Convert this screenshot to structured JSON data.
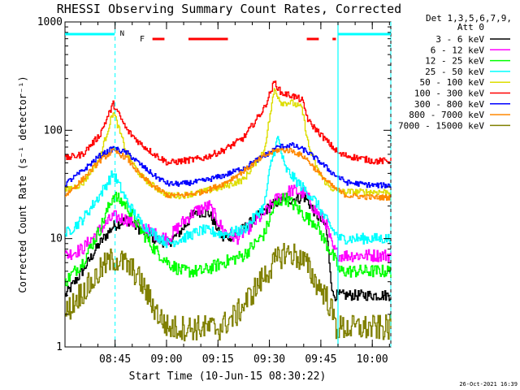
{
  "chart_data": {
    "type": "line",
    "title": "RHESSI Observing Summary Count Rates, Corrected",
    "xlabel": "Start Time (10-Jun-15 08:30:22)",
    "ylabel": "Corrected Count Rate (s⁻¹ detector⁻¹)",
    "yscale": "log",
    "ylim": [
      1,
      1000
    ],
    "xlim_minutes": [
      0,
      95
    ],
    "x_ticks": [
      {
        "label": "08:45",
        "t": 14.6
      },
      {
        "label": "09:00",
        "t": 29.6
      },
      {
        "label": "09:15",
        "t": 44.6
      },
      {
        "label": "09:30",
        "t": 59.6
      },
      {
        "label": "09:45",
        "t": 74.6
      },
      {
        "label": "10:00",
        "t": 89.6
      }
    ],
    "y_tick_labels": [
      "1",
      "10",
      "100",
      "1000"
    ],
    "legend": {
      "position": "right",
      "header_line1": "Det 1,3,5,6,7,9,",
      "header_line2": "Att 0"
    },
    "series": [
      {
        "name": "3 - 6 keV",
        "color": "#000000",
        "t": [
          0,
          5,
          10,
          14,
          18,
          22,
          26,
          30,
          34,
          38,
          42,
          46,
          50,
          54,
          58,
          62,
          66,
          70,
          73,
          76,
          78,
          80,
          90,
          95
        ],
        "v": [
          3,
          5,
          9,
          13,
          15,
          12,
          10,
          9,
          12,
          18,
          17,
          10,
          11,
          14,
          18,
          22,
          23,
          24,
          17,
          13,
          3,
          3,
          3,
          3
        ]
      },
      {
        "name": "6 - 12 keV",
        "color": "#ff00ff",
        "t": [
          0,
          5,
          10,
          14,
          18,
          22,
          26,
          30,
          34,
          38,
          42,
          46,
          50,
          54,
          58,
          62,
          66,
          70,
          73,
          76,
          78,
          80,
          90,
          95
        ],
        "v": [
          7,
          8,
          12,
          16,
          15,
          13,
          11,
          10,
          14,
          18,
          20,
          12,
          10,
          13,
          17,
          24,
          28,
          26,
          18,
          14,
          8,
          7,
          7,
          7
        ]
      },
      {
        "name": "12 - 25 keV",
        "color": "#00ff00",
        "t": [
          0,
          5,
          10,
          14,
          18,
          22,
          26,
          30,
          34,
          40,
          46,
          52,
          58,
          61,
          64,
          67,
          70,
          73,
          76,
          78,
          80,
          90,
          95
        ],
        "v": [
          4,
          6,
          12,
          25,
          20,
          12,
          8,
          6,
          5,
          5,
          6,
          7,
          11,
          20,
          24,
          20,
          16,
          14,
          9,
          7,
          5,
          5,
          5
        ]
      },
      {
        "name": "25 - 50 keV",
        "color": "#00ffff",
        "t": [
          0,
          5,
          10,
          14,
          18,
          22,
          26,
          30,
          34,
          40,
          46,
          52,
          58,
          60,
          62,
          64,
          67,
          70,
          73,
          76,
          78,
          80,
          90,
          95
        ],
        "v": [
          11,
          15,
          25,
          40,
          22,
          14,
          11,
          9,
          10,
          12,
          11,
          12,
          20,
          50,
          85,
          45,
          35,
          28,
          22,
          15,
          12,
          10,
          10,
          10
        ]
      },
      {
        "name": "50 - 100 keV",
        "color": "#dddd00",
        "t": [
          0,
          5,
          10,
          14,
          18,
          22,
          26,
          30,
          34,
          40,
          46,
          52,
          58,
          61,
          63,
          66,
          69,
          71,
          74,
          77,
          80,
          90,
          95
        ],
        "v": [
          28,
          32,
          55,
          150,
          60,
          38,
          30,
          25,
          25,
          27,
          30,
          35,
          65,
          240,
          180,
          180,
          160,
          70,
          40,
          30,
          27,
          27,
          27
        ]
      },
      {
        "name": "100 - 300 keV",
        "color": "#ff0000",
        "t": [
          0,
          5,
          10,
          14,
          18,
          22,
          26,
          30,
          34,
          40,
          46,
          52,
          58,
          61,
          63,
          66,
          69,
          71,
          74,
          77,
          80,
          90,
          95
        ],
        "v": [
          55,
          60,
          90,
          175,
          100,
          75,
          60,
          50,
          52,
          55,
          65,
          85,
          160,
          280,
          220,
          210,
          190,
          120,
          95,
          75,
          60,
          52,
          52
        ]
      },
      {
        "name": "300 - 800 keV",
        "color": "#0000ff",
        "t": [
          0,
          5,
          10,
          14,
          18,
          22,
          26,
          30,
          34,
          40,
          46,
          52,
          58,
          62,
          66,
          70,
          74,
          78,
          82,
          90,
          95
        ],
        "v": [
          32,
          42,
          58,
          68,
          62,
          48,
          38,
          32,
          32,
          34,
          38,
          45,
          58,
          70,
          73,
          65,
          52,
          40,
          33,
          31,
          31
        ]
      },
      {
        "name": "800 - 7000 keV",
        "color": "#ff8800",
        "t": [
          0,
          5,
          10,
          14,
          18,
          22,
          26,
          30,
          34,
          40,
          46,
          52,
          58,
          62,
          66,
          70,
          74,
          78,
          82,
          90,
          95
        ],
        "v": [
          25,
          35,
          52,
          65,
          55,
          38,
          30,
          25,
          25,
          27,
          32,
          42,
          58,
          66,
          65,
          56,
          40,
          30,
          25,
          24,
          24
        ]
      },
      {
        "name": "7000 - 15000 keV",
        "color": "#808000",
        "t": [
          0,
          4,
          8,
          11,
          14,
          17,
          20,
          22,
          24,
          27,
          30,
          35,
          40,
          45,
          50,
          54,
          58,
          61,
          64,
          67,
          70,
          73,
          76,
          78,
          79,
          82,
          85,
          90,
          95
        ],
        "v": [
          2,
          3,
          4,
          5.5,
          6.5,
          6,
          5,
          4,
          3,
          2,
          1.5,
          1.5,
          1.5,
          1.5,
          2,
          3,
          4.5,
          6,
          7.5,
          7,
          6,
          4,
          3,
          2,
          1.5,
          1.5,
          1.5,
          1.5,
          1.5
        ]
      }
    ],
    "annotations": {
      "flag_N": "N",
      "flag_F": "F"
    },
    "bars": [
      {
        "color": "#00ffff",
        "segments": [
          [
            0,
            14.5
          ],
          [
            79.6,
            95
          ]
        ]
      },
      {
        "color": "#ff0000",
        "segments": [
          [
            25.5,
            29
          ],
          [
            36,
            47.5
          ],
          [
            70.5,
            74
          ],
          [
            78,
            79
          ]
        ]
      }
    ],
    "dashed_lines_t": [
      14.6,
      79.6,
      95
    ]
  },
  "footer_date": "26-Oct-2021 16:39"
}
